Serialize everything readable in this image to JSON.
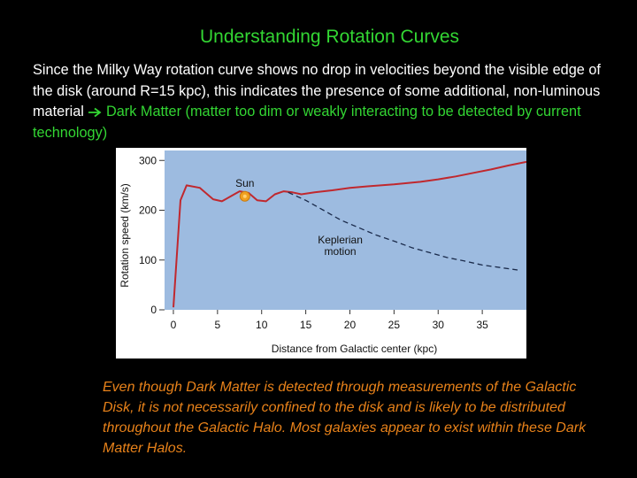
{
  "slide": {
    "title": "Understanding Rotation Curves",
    "intro_text": "Since the Milky Way rotation curve shows no drop in velocities beyond the visible edge of the disk (around R=15 kpc), this indicates the presence of some additional, non-luminous material",
    "intro_highlight": "Dark Matter (matter too dim or weakly interacting to be detected by current technology)",
    "arrow_icon": "right-arrow-icon",
    "caption": "Even though Dark Matter is detected through measurements of the Galactic Disk, it is not necessarily confined to the disk and is likely to be distributed throughout the Galactic Halo. Most galaxies appear to exist within these Dark Matter Halos.",
    "colors": {
      "background": "#000000",
      "title": "#33d633",
      "highlight": "#33d633",
      "caption": "#e8821a",
      "plot_background": "#9dbbe0",
      "curve": "#c0282e",
      "sun": "#f0a020"
    }
  },
  "chart_data": {
    "type": "line",
    "xlabel": "Distance from Galactic center (kpc)",
    "ylabel": "Rotation speed (km/s)",
    "xlim": [
      -1,
      40
    ],
    "ylim": [
      0,
      320
    ],
    "xticks": [
      0,
      5,
      10,
      15,
      20,
      25,
      30,
      35
    ],
    "yticks": [
      0,
      100,
      200,
      300
    ],
    "series": [
      {
        "style": "solid",
        "x": [
          0,
          0.8,
          1.5,
          3,
          4.5,
          5.5,
          6.5,
          7.5,
          8.5,
          9.5,
          10.5,
          11.5,
          12.5,
          13.5,
          14.5,
          16,
          18,
          20,
          22,
          25,
          28,
          30,
          32,
          34,
          36,
          38,
          40
        ],
        "values": [
          5,
          220,
          250,
          245,
          222,
          218,
          228,
          238,
          235,
          220,
          218,
          232,
          238,
          236,
          232,
          236,
          240,
          245,
          248,
          252,
          257,
          262,
          268,
          275,
          282,
          290,
          297
        ]
      },
      {
        "style": "dashed",
        "x": [
          13,
          15,
          17,
          19,
          21,
          23,
          25,
          27,
          29,
          31,
          33,
          35,
          37,
          39
        ],
        "values": [
          236,
          220,
          200,
          180,
          165,
          150,
          138,
          125,
          115,
          105,
          98,
          90,
          85,
          80
        ]
      }
    ],
    "annotations": [
      {
        "text": "Sun",
        "x": 8.1,
        "y": 228
      },
      {
        "text": "Keplerian\nmotion",
        "x": 17.5,
        "y": 130
      }
    ],
    "grid": false
  }
}
